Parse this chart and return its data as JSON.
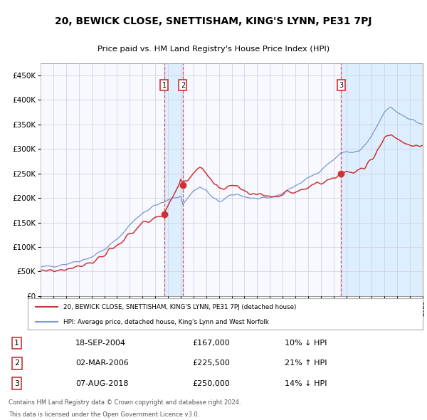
{
  "title": "20, BEWICK CLOSE, SNETTISHAM, KING'S LYNN, PE31 7PJ",
  "subtitle": "Price paid vs. HM Land Registry's House Price Index (HPI)",
  "legend_line1": "20, BEWICK CLOSE, SNETTISHAM, KING'S LYNN, PE31 7PJ (detached house)",
  "legend_line2": "HPI: Average price, detached house, King's Lynn and West Norfolk",
  "transactions": [
    {
      "label": "1",
      "date": "18-SEP-2004",
      "price": "£167,000",
      "pct": "10%",
      "dir": "↓"
    },
    {
      "label": "2",
      "date": "02-MAR-2006",
      "price": "£225,500",
      "pct": "21%",
      "dir": "↑"
    },
    {
      "label": "3",
      "date": "07-AUG-2018",
      "price": "£250,000",
      "pct": "14%",
      "dir": "↓"
    }
  ],
  "trans_years": [
    2004.72,
    2006.17,
    2018.6
  ],
  "trans_prices": [
    167000,
    225500,
    250000
  ],
  "footer_line1": "Contains HM Land Registry data © Crown copyright and database right 2024.",
  "footer_line2": "This data is licensed under the Open Government Licence v3.0.",
  "hpi_color": "#7799cc",
  "property_color": "#cc3333",
  "marker_color": "#cc3333",
  "grid_color": "#ccccdd",
  "plot_bg": "#f8f8ff",
  "shade_color": "#ddeeff",
  "ylim": [
    0,
    475000
  ],
  "yticks": [
    0,
    50000,
    100000,
    150000,
    200000,
    250000,
    300000,
    350000,
    400000,
    450000
  ],
  "xmin": 1995,
  "xmax": 2025
}
